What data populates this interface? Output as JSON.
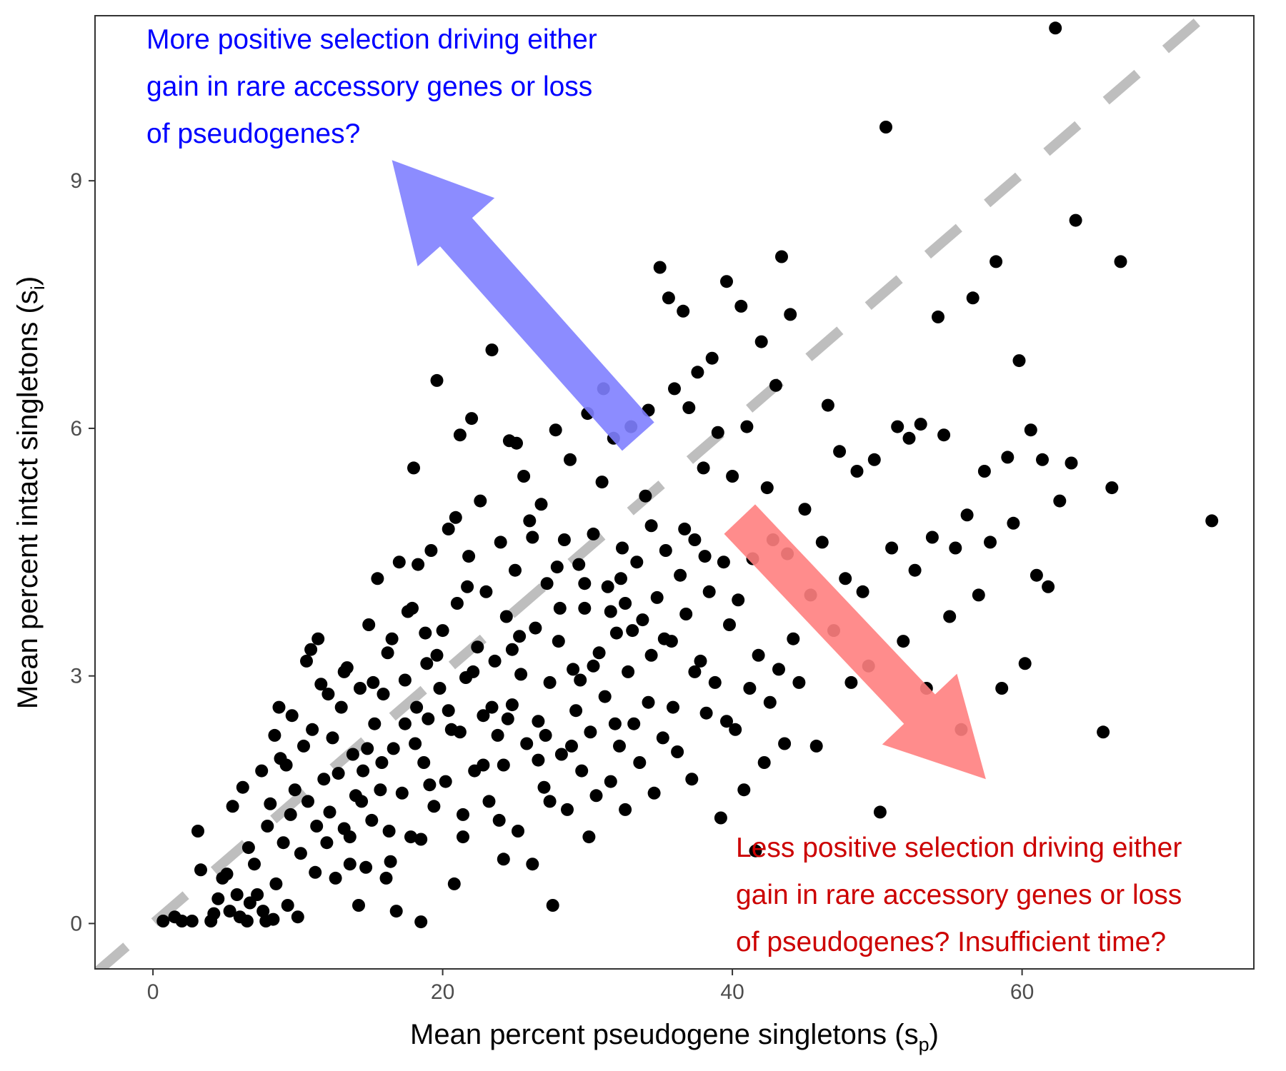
{
  "chart_data": {
    "type": "scatter",
    "title": "",
    "xlabel": {
      "main": "Mean percent pseudogene singletons (s",
      "sub": "p",
      "close": ")"
    },
    "ylabel": {
      "main": "Mean percent intact singletons (s",
      "sub": "i",
      "close": ")"
    },
    "xlim": [
      -4,
      76
    ],
    "ylim": [
      -0.55,
      11
    ],
    "x_ticks": [
      0,
      20,
      40,
      60
    ],
    "y_ticks": [
      0,
      3,
      6,
      9
    ],
    "x_tick_labels": [
      "0",
      "20",
      "40",
      "60"
    ],
    "y_tick_labels": [
      "0",
      "3",
      "6",
      "9"
    ],
    "grid": false,
    "point_color": "#000000",
    "reference_line": {
      "type": "identity",
      "slope_units": "y = x / 6.6",
      "color": "#bebebe",
      "style": "dashed"
    },
    "annotations": [
      {
        "color": "#0000ff",
        "lines": [
          "More positive selection driving either",
          "gain in rare accessory genes or loss",
          "of pseudogenes?"
        ]
      },
      {
        "color": "#cc0000",
        "lines": [
          "Less positive selection driving either",
          "gain in rare accessory genes or loss",
          "of pseudogenes? Insufficient time?"
        ]
      }
    ],
    "arrows": [
      {
        "direction": "up-left",
        "color": "#8080ff",
        "from": [
          33.5,
          5.9
        ],
        "to": [
          16.5,
          9.25
        ]
      },
      {
        "direction": "down-right",
        "color": "#ff8080",
        "from": [
          40.5,
          4.9
        ],
        "to": [
          57.5,
          1.75
        ]
      }
    ],
    "points": [
      [
        0.7,
        0.03
      ],
      [
        1.5,
        0.08
      ],
      [
        2,
        0.03
      ],
      [
        2.7,
        0.03
      ],
      [
        3.3,
        0.65
      ],
      [
        3.1,
        1.12
      ],
      [
        4,
        0.03
      ],
      [
        4.2,
        0.12
      ],
      [
        4.5,
        0.3
      ],
      [
        4.8,
        0.55
      ],
      [
        5.1,
        0.6
      ],
      [
        5.3,
        0.15
      ],
      [
        5.5,
        1.42
      ],
      [
        5.8,
        0.35
      ],
      [
        6,
        0.08
      ],
      [
        6.2,
        1.65
      ],
      [
        6.5,
        0.03
      ],
      [
        6.7,
        0.25
      ],
      [
        7,
        0.72
      ],
      [
        7.2,
        0.35
      ],
      [
        7.5,
        1.85
      ],
      [
        7.6,
        0.15
      ],
      [
        7.8,
        0.03
      ],
      [
        8.1,
        1.45
      ],
      [
        8.3,
        0.05
      ],
      [
        8.5,
        0.48
      ],
      [
        8.7,
        2.62
      ],
      [
        8.8,
        2
      ],
      [
        9,
        0.98
      ],
      [
        9.3,
        0.22
      ],
      [
        9.5,
        1.32
      ],
      [
        9.6,
        2.52
      ],
      [
        9.8,
        1.62
      ],
      [
        10,
        0.08
      ],
      [
        10.2,
        0.85
      ],
      [
        10.4,
        2.15
      ],
      [
        10.6,
        3.18
      ],
      [
        10.7,
        1.48
      ],
      [
        11,
        2.35
      ],
      [
        11.2,
        0.62
      ],
      [
        11.4,
        3.45
      ],
      [
        11.6,
        2.9
      ],
      [
        11.8,
        1.75
      ],
      [
        12,
        0.98
      ],
      [
        12.2,
        1.35
      ],
      [
        12.4,
        2.25
      ],
      [
        12.6,
        0.55
      ],
      [
        12.8,
        1.82
      ],
      [
        13,
        2.62
      ],
      [
        13.2,
        1.15
      ],
      [
        13.4,
        3.1
      ],
      [
        13.6,
        0.72
      ],
      [
        13.8,
        2.05
      ],
      [
        14,
        1.55
      ],
      [
        14.2,
        0.22
      ],
      [
        14.3,
        2.85
      ],
      [
        14.5,
        1.85
      ],
      [
        14.7,
        0.68
      ],
      [
        14.9,
        3.62
      ],
      [
        15.1,
        1.25
      ],
      [
        15.3,
        2.42
      ],
      [
        15.5,
        4.18
      ],
      [
        15.7,
        1.62
      ],
      [
        15.9,
        2.78
      ],
      [
        16.1,
        0.55
      ],
      [
        16.3,
        1.12
      ],
      [
        16.5,
        3.45
      ],
      [
        16.6,
        2.12
      ],
      [
        16.8,
        0.15
      ],
      [
        17,
        4.38
      ],
      [
        17.2,
        1.58
      ],
      [
        17.4,
        2.95
      ],
      [
        17.6,
        3.78
      ],
      [
        17.8,
        1.05
      ],
      [
        18,
        5.52
      ],
      [
        18.2,
        2.62
      ],
      [
        18.3,
        4.35
      ],
      [
        18.5,
        0.02
      ],
      [
        18.7,
        1.95
      ],
      [
        18.9,
        3.15
      ],
      [
        19,
        2.48
      ],
      [
        19.2,
        4.52
      ],
      [
        19.4,
        1.42
      ],
      [
        19.6,
        6.58
      ],
      [
        19.8,
        2.85
      ],
      [
        20,
        3.55
      ],
      [
        20.2,
        1.72
      ],
      [
        20.4,
        4.78
      ],
      [
        20.6,
        2.35
      ],
      [
        20.8,
        0.48
      ],
      [
        21,
        3.88
      ],
      [
        21.2,
        5.92
      ],
      [
        21.4,
        1.05
      ],
      [
        21.6,
        2.98
      ],
      [
        21.8,
        4.45
      ],
      [
        22,
        6.12
      ],
      [
        22.2,
        1.85
      ],
      [
        22.4,
        3.35
      ],
      [
        22.6,
        5.12
      ],
      [
        22.8,
        2.52
      ],
      [
        23,
        4.02
      ],
      [
        23.2,
        1.48
      ],
      [
        23.4,
        6.95
      ],
      [
        23.6,
        3.18
      ],
      [
        23.8,
        2.28
      ],
      [
        24,
        4.62
      ],
      [
        24.2,
        1.92
      ],
      [
        24.4,
        3.72
      ],
      [
        24.6,
        5.85
      ],
      [
        24.8,
        2.65
      ],
      [
        25,
        4.28
      ],
      [
        25.2,
        1.12
      ],
      [
        25.4,
        3.02
      ],
      [
        25.6,
        5.42
      ],
      [
        25.8,
        2.18
      ],
      [
        26,
        4.88
      ],
      [
        26.2,
        0.72
      ],
      [
        26.4,
        3.58
      ],
      [
        26.6,
        2.45
      ],
      [
        26.8,
        5.08
      ],
      [
        27,
        1.65
      ],
      [
        27.2,
        4.12
      ],
      [
        27.4,
        2.92
      ],
      [
        27.6,
        0.22
      ],
      [
        27.8,
        5.98
      ],
      [
        28,
        3.42
      ],
      [
        28.2,
        2.05
      ],
      [
        28.4,
        4.65
      ],
      [
        28.6,
        1.38
      ],
      [
        28.8,
        5.62
      ],
      [
        29,
        3.08
      ],
      [
        29.2,
        2.58
      ],
      [
        29.4,
        4.35
      ],
      [
        29.6,
        1.85
      ],
      [
        29.8,
        3.82
      ],
      [
        30,
        6.18
      ],
      [
        30.2,
        2.32
      ],
      [
        30.4,
        4.72
      ],
      [
        30.6,
        1.55
      ],
      [
        30.8,
        3.28
      ],
      [
        31,
        5.35
      ],
      [
        31.2,
        2.75
      ],
      [
        31.4,
        4.08
      ],
      [
        31.6,
        1.72
      ],
      [
        31.8,
        5.88
      ],
      [
        32,
        3.52
      ],
      [
        32.2,
        2.15
      ],
      [
        32.4,
        4.55
      ],
      [
        32.6,
        1.38
      ],
      [
        32.8,
        3.05
      ],
      [
        33,
        6.02
      ],
      [
        33.2,
        2.42
      ],
      [
        33.4,
        4.38
      ],
      [
        33.6,
        1.95
      ],
      [
        33.8,
        3.68
      ],
      [
        34,
        5.18
      ],
      [
        34.2,
        2.68
      ],
      [
        34.4,
        4.82
      ],
      [
        34.6,
        1.58
      ],
      [
        34.8,
        3.95
      ],
      [
        35,
        7.95
      ],
      [
        35.2,
        2.25
      ],
      [
        35.4,
        4.52
      ],
      [
        35.6,
        7.58
      ],
      [
        35.8,
        3.42
      ],
      [
        36,
        6.48
      ],
      [
        36.2,
        2.08
      ],
      [
        36.4,
        4.22
      ],
      [
        36.6,
        7.42
      ],
      [
        36.8,
        3.75
      ],
      [
        37,
        6.25
      ],
      [
        37.2,
        1.75
      ],
      [
        37.4,
        4.65
      ],
      [
        37.6,
        6.68
      ],
      [
        37.8,
        3.18
      ],
      [
        38,
        5.52
      ],
      [
        38.2,
        2.55
      ],
      [
        38.4,
        4.02
      ],
      [
        38.6,
        6.85
      ],
      [
        38.8,
        2.92
      ],
      [
        39,
        5.95
      ],
      [
        39.2,
        1.28
      ],
      [
        39.4,
        4.38
      ],
      [
        39.6,
        7.78
      ],
      [
        39.8,
        3.62
      ],
      [
        40,
        5.42
      ],
      [
        40.2,
        2.35
      ],
      [
        40.4,
        3.92
      ],
      [
        40.6,
        7.48
      ],
      [
        40.8,
        1.62
      ],
      [
        41,
        6.02
      ],
      [
        41.2,
        2.85
      ],
      [
        41.4,
        4.42
      ],
      [
        41.6,
        0.88
      ],
      [
        41.8,
        3.25
      ],
      [
        42,
        7.05
      ],
      [
        42.2,
        1.95
      ],
      [
        42.4,
        5.28
      ],
      [
        42.6,
        2.68
      ],
      [
        42.8,
        4.65
      ],
      [
        43,
        6.52
      ],
      [
        43.2,
        3.08
      ],
      [
        43.4,
        8.08
      ],
      [
        43.6,
        2.18
      ],
      [
        43.8,
        4.48
      ],
      [
        44,
        7.38
      ],
      [
        44.2,
        3.45
      ],
      [
        44.6,
        2.92
      ],
      [
        45,
        5.02
      ],
      [
        45.4,
        3.98
      ],
      [
        45.8,
        2.15
      ],
      [
        46.2,
        4.62
      ],
      [
        46.6,
        6.28
      ],
      [
        47,
        3.55
      ],
      [
        47.4,
        5.72
      ],
      [
        47.8,
        4.18
      ],
      [
        48.2,
        2.92
      ],
      [
        48.6,
        5.48
      ],
      [
        49,
        4.02
      ],
      [
        49.4,
        3.12
      ],
      [
        49.8,
        5.62
      ],
      [
        50.2,
        1.35
      ],
      [
        50.6,
        9.65
      ],
      [
        51,
        4.55
      ],
      [
        51.4,
        6.02
      ],
      [
        51.8,
        3.42
      ],
      [
        52.2,
        5.88
      ],
      [
        52.6,
        4.28
      ],
      [
        53,
        6.05
      ],
      [
        53.4,
        2.85
      ],
      [
        53.8,
        4.68
      ],
      [
        54.2,
        7.35
      ],
      [
        54.6,
        5.92
      ],
      [
        55,
        3.72
      ],
      [
        55.4,
        4.55
      ],
      [
        55.8,
        2.35
      ],
      [
        56.2,
        4.95
      ],
      [
        56.6,
        7.58
      ],
      [
        57,
        3.98
      ],
      [
        57.4,
        5.48
      ],
      [
        57.8,
        4.62
      ],
      [
        58.2,
        8.02
      ],
      [
        58.6,
        2.85
      ],
      [
        59,
        5.65
      ],
      [
        59.4,
        4.85
      ],
      [
        59.8,
        6.82
      ],
      [
        60.2,
        3.15
      ],
      [
        60.6,
        5.98
      ],
      [
        61,
        4.22
      ],
      [
        61.4,
        5.62
      ],
      [
        61.8,
        4.08
      ],
      [
        62.3,
        10.85
      ],
      [
        62.6,
        5.12
      ],
      [
        63.4,
        5.58
      ],
      [
        63.7,
        8.52
      ],
      [
        65.6,
        2.32
      ],
      [
        66.2,
        5.28
      ],
      [
        66.8,
        8.02
      ],
      [
        73.1,
        4.88
      ],
      [
        29.5,
        2.95
      ],
      [
        24.5,
        2.48
      ],
      [
        22.1,
        3.05
      ],
      [
        20.4,
        2.58
      ],
      [
        27.1,
        2.28
      ],
      [
        25.3,
        3.48
      ],
      [
        31.9,
        2.42
      ],
      [
        26.6,
        1.98
      ],
      [
        21.7,
        4.08
      ],
      [
        19.1,
        1.68
      ],
      [
        23.9,
        1.25
      ],
      [
        17.9,
        3.82
      ],
      [
        28.9,
        2.15
      ],
      [
        30.4,
        3.12
      ],
      [
        32.3,
        4.18
      ],
      [
        26.2,
        4.68
      ],
      [
        22.8,
        1.92
      ],
      [
        15.8,
        1.95
      ],
      [
        13.6,
        1.05
      ],
      [
        11.3,
        1.18
      ],
      [
        18.8,
        3.52
      ],
      [
        25.1,
        5.82
      ],
      [
        31.1,
        6.48
      ],
      [
        34.2,
        6.22
      ],
      [
        36.7,
        4.78
      ],
      [
        33.1,
        3.55
      ],
      [
        28.1,
        3.82
      ],
      [
        24.8,
        3.32
      ],
      [
        20.9,
        4.92
      ],
      [
        17.4,
        2.42
      ],
      [
        14.8,
        2.12
      ],
      [
        12.1,
        2.78
      ],
      [
        9.2,
        1.92
      ],
      [
        7.9,
        1.18
      ],
      [
        6.6,
        0.92
      ],
      [
        16.2,
        3.28
      ],
      [
        23.4,
        2.62
      ],
      [
        29.8,
        4.12
      ],
      [
        32.6,
        3.88
      ],
      [
        35.3,
        3.45
      ],
      [
        38.1,
        4.45
      ],
      [
        39.6,
        2.45
      ],
      [
        37.4,
        3.05
      ],
      [
        35.9,
        2.62
      ],
      [
        34.4,
        3.25
      ],
      [
        31.6,
        3.78
      ],
      [
        27.9,
        4.32
      ],
      [
        21.2,
        2.32
      ],
      [
        19.6,
        3.25
      ],
      [
        18.1,
        2.18
      ],
      [
        15.2,
        2.92
      ],
      [
        13.2,
        3.05
      ],
      [
        10.9,
        3.32
      ],
      [
        8.4,
        2.28
      ],
      [
        30.1,
        1.05
      ],
      [
        27.4,
        1.48
      ],
      [
        24.2,
        0.78
      ],
      [
        21.4,
        1.32
      ],
      [
        18.5,
        1.02
      ],
      [
        16.4,
        0.75
      ],
      [
        14.4,
        1.48
      ]
    ]
  }
}
